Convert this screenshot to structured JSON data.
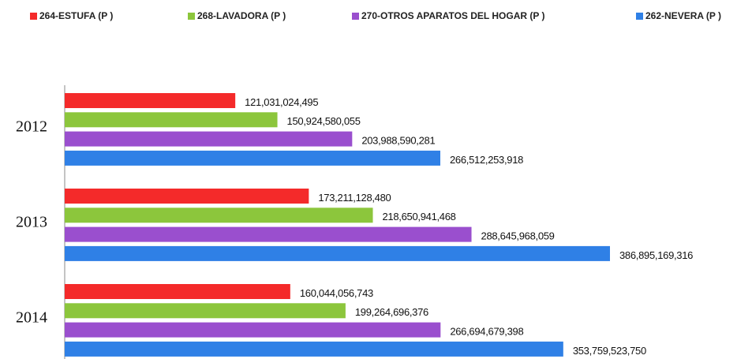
{
  "chart_data": {
    "type": "bar",
    "orientation": "horizontal",
    "categories": [
      "2012",
      "2013",
      "2014"
    ],
    "series": [
      {
        "name": "264-ESTUFA (P )",
        "color": "#f42a2a",
        "values": [
          121031024495,
          173211128480,
          160044056743
        ],
        "value_labels": [
          "121,031,024,495",
          "173,211,128,480",
          "160,044,056,743"
        ]
      },
      {
        "name": "268-LAVADORA (P )",
        "color": "#8cc63c",
        "values": [
          150924580055,
          218650941468,
          199264696376
        ],
        "value_labels": [
          "150,924,580,055",
          "218,650,941,468",
          "199,264,696,376"
        ]
      },
      {
        "name": "270-OTROS APARATOS DEL HOGAR (P )",
        "color": "#9a4fce",
        "values": [
          203988590281,
          288645968059,
          266694679398
        ],
        "value_labels": [
          "203,988,590,281",
          "288,645,968,059",
          "266,694,679,398"
        ]
      },
      {
        "name": "262-NEVERA (P )",
        "color": "#2f80e6",
        "values": [
          266512253918,
          386895169316,
          353759523750
        ],
        "value_labels": [
          "266,512,253,918",
          "386,895,169,316",
          "353,759,523,750"
        ]
      }
    ],
    "legend": "top"
  }
}
